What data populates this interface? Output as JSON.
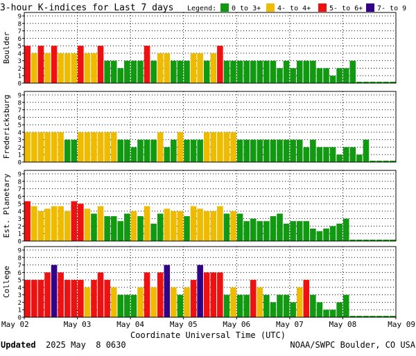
{
  "title": "3-hour K-indices for Last 7 days",
  "legend": {
    "label": "Legend:",
    "items": [
      {
        "label": "0 to 3+",
        "color": "#119911"
      },
      {
        "label": "4- to 4+",
        "color": "#eebb00"
      },
      {
        "label": "5- to 6+",
        "color": "#ee1111"
      },
      {
        "label": "7- to 9",
        "color": "#330088"
      }
    ]
  },
  "x_axis": {
    "ticks": [
      "May 02",
      "May 03",
      "May 04",
      "May 05",
      "May 06",
      "May 07",
      "May 08",
      "May 09"
    ],
    "label": "Coordinate Universal Time (UTC)"
  },
  "footer": {
    "updated_label": "Updated",
    "updated_value": "2025 May  8 0630",
    "source": "NOAA/SWPC Boulder, CO USA"
  },
  "chart_data": [
    {
      "type": "bar",
      "title": "Boulder",
      "ylim": [
        0,
        9
      ],
      "y_ticks": [
        0,
        1,
        2,
        3,
        4,
        5,
        6,
        7,
        8,
        9
      ],
      "values": [
        5,
        4,
        5,
        4,
        5,
        4,
        4,
        4,
        5,
        4,
        4,
        5,
        3,
        3,
        2,
        3,
        3,
        3,
        5,
        3,
        4,
        4,
        3,
        3,
        3,
        4,
        4,
        3,
        4,
        5,
        3,
        3,
        3,
        3,
        3,
        3,
        3,
        3,
        2,
        3,
        2,
        3,
        3,
        3,
        2,
        2,
        1,
        2,
        2,
        3,
        0,
        0,
        0,
        0,
        0,
        0
      ]
    },
    {
      "type": "bar",
      "title": "Fredericksburg",
      "ylim": [
        0,
        9
      ],
      "y_ticks": [
        0,
        1,
        2,
        3,
        4,
        5,
        6,
        7,
        8,
        9
      ],
      "values": [
        4,
        4,
        4,
        4,
        4,
        4,
        3,
        3,
        4,
        4,
        4,
        4,
        4,
        4,
        3,
        3,
        2,
        3,
        3,
        3,
        4,
        2,
        3,
        4,
        3,
        3,
        3,
        4,
        4,
        4,
        4,
        4,
        3,
        3,
        3,
        3,
        3,
        3,
        3,
        3,
        3,
        3,
        2,
        3,
        2,
        2,
        2,
        1,
        2,
        2,
        1,
        3,
        0,
        0,
        0,
        0
      ]
    },
    {
      "type": "bar",
      "title": "Est. Planetary",
      "ylim": [
        0,
        9
      ],
      "y_ticks": [
        0,
        1,
        2,
        3,
        4,
        5,
        6,
        7,
        8,
        9
      ],
      "values": [
        5.33,
        4.67,
        4,
        4.33,
        4.67,
        4.67,
        4,
        5.33,
        5,
        4.33,
        3.67,
        4.67,
        3.33,
        3.33,
        2.67,
        3.67,
        4,
        3.33,
        4.67,
        2.33,
        3.67,
        4.33,
        4,
        4,
        3.33,
        4.67,
        4.33,
        4,
        4,
        4.67,
        3.67,
        4,
        3.67,
        2.67,
        3,
        2.67,
        2.67,
        3.33,
        3.67,
        2.33,
        2.67,
        2.67,
        2.67,
        1.67,
        1.33,
        1.67,
        2,
        2.33,
        3,
        0,
        0,
        0,
        0,
        0,
        0,
        0
      ]
    },
    {
      "type": "bar",
      "title": "College",
      "ylim": [
        0,
        9
      ],
      "y_ticks": [
        0,
        1,
        2,
        3,
        4,
        5,
        6,
        7,
        8,
        9
      ],
      "values": [
        5,
        5,
        5,
        6,
        7,
        6,
        5,
        5,
        5,
        4,
        5,
        6,
        5,
        4,
        3,
        3,
        3,
        4,
        6,
        4,
        6,
        7,
        4,
        3,
        4,
        5,
        7,
        6,
        6,
        6,
        3,
        4,
        3,
        3,
        5,
        4,
        3,
        2,
        3,
        3,
        2,
        4,
        5,
        3,
        2,
        1,
        1,
        2,
        3,
        0,
        0,
        0,
        0,
        0,
        0,
        0
      ]
    }
  ]
}
